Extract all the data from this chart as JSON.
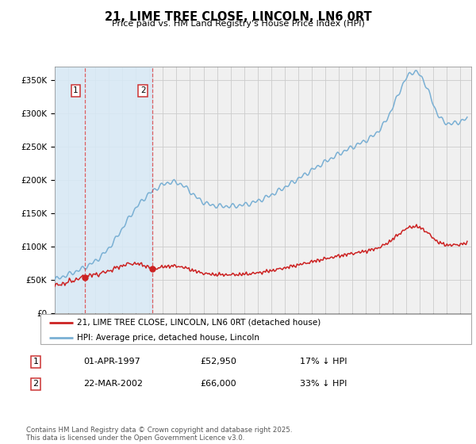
{
  "title": "21, LIME TREE CLOSE, LINCOLN, LN6 0RT",
  "subtitle": "Price paid vs. HM Land Registry's House Price Index (HPI)",
  "ylim": [
    0,
    370000
  ],
  "yticks": [
    0,
    50000,
    100000,
    150000,
    200000,
    250000,
    300000,
    350000
  ],
  "xlim_start": 1995.0,
  "xlim_end": 2025.8,
  "purchase1_date": 1997.25,
  "purchase2_date": 2002.22,
  "purchase1_price": 52950,
  "purchase2_price": 66000,
  "hpi_line_color": "#7ab0d4",
  "price_line_color": "#cc2222",
  "marker_color": "#cc2222",
  "vline_color": "#dd4444",
  "shading_color": "#d8eaf7",
  "legend1_label": "21, LIME TREE CLOSE, LINCOLN, LN6 0RT (detached house)",
  "legend2_label": "HPI: Average price, detached house, Lincoln",
  "table_row1": [
    "1",
    "01-APR-1997",
    "£52,950",
    "17% ↓ HPI"
  ],
  "table_row2": [
    "2",
    "22-MAR-2002",
    "£66,000",
    "33% ↓ HPI"
  ],
  "footer": "Contains HM Land Registry data © Crown copyright and database right 2025.\nThis data is licensed under the Open Government Licence v3.0.",
  "background_color": "#ffffff",
  "plot_bg_color": "#f0f0f0"
}
